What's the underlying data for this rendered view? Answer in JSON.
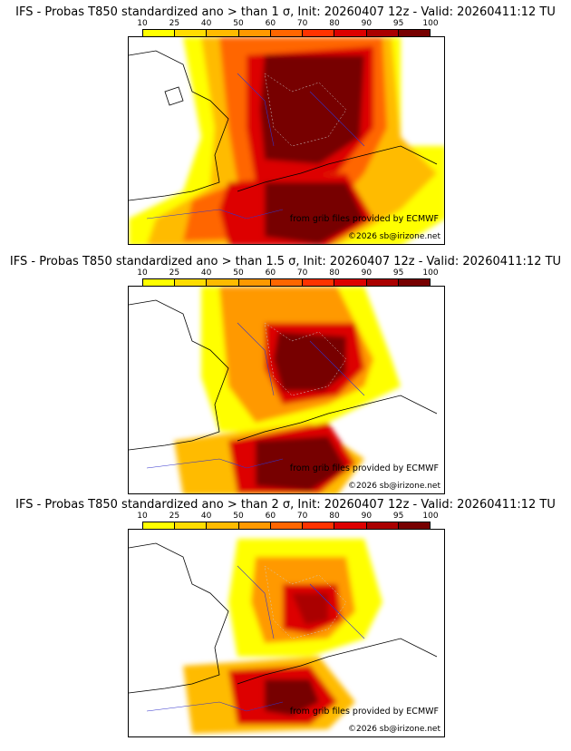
{
  "colorbar": {
    "ticks": [
      "10",
      "25",
      "40",
      "50",
      "60",
      "70",
      "80",
      "90",
      "95",
      "100"
    ],
    "colors": [
      "#ffff00",
      "#ffdd00",
      "#ffbb00",
      "#ff9900",
      "#ff6600",
      "#ff3300",
      "#dd0000",
      "#aa0000",
      "#770000"
    ]
  },
  "credit_source": "from grib files provided by ECMWF",
  "credit_copyright": "©2026 sb@irizone.net",
  "panels": [
    {
      "title": "IFS - Probas T850  standardized ano > than 1 σ, Init: 20260407 12z - Valid: 20260411:12 TU",
      "threshold": 1
    },
    {
      "title": "IFS - Probas T850  standardized ano > than 1.5 σ, Init: 20260407 12z - Valid: 20260411:12 TU",
      "threshold": 1.5
    },
    {
      "title": "IFS - Probas T850  standardized ano > than 2 σ, Init: 20260407 12z - Valid: 20260411:12 TU",
      "threshold": 2
    }
  ]
}
